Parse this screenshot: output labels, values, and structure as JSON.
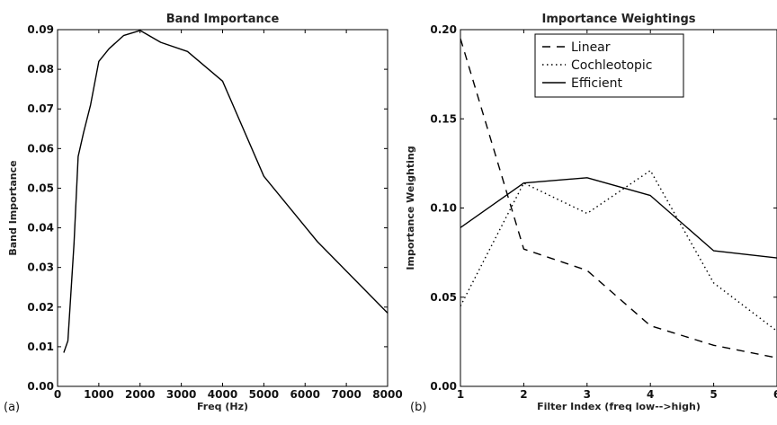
{
  "chart_data": [
    {
      "type": "line",
      "panel_label": "(a)",
      "title": "Band Importance",
      "xlabel": "Freq (Hz)",
      "ylabel": "Band Importance",
      "xlim": [
        0,
        8000
      ],
      "ylim": [
        0.0,
        0.09
      ],
      "xticks": [
        0,
        1000,
        2000,
        3000,
        4000,
        5000,
        6000,
        7000,
        8000
      ],
      "xtick_labels": [
        "0",
        "1000",
        "2000",
        "3000",
        "4000",
        "5000",
        "6000",
        "7000",
        "8000"
      ],
      "yticks": [
        0.0,
        0.01,
        0.02,
        0.03,
        0.04,
        0.05,
        0.06,
        0.07,
        0.08,
        0.09
      ],
      "ytick_labels": [
        "0.00",
        "0.01",
        "0.02",
        "0.03",
        "0.04",
        "0.05",
        "0.06",
        "0.07",
        "0.08",
        "0.09"
      ],
      "grid": false,
      "series": [
        {
          "style": "solid",
          "color": "#000000",
          "x": [
            150,
            250,
            400,
            500,
            630,
            800,
            1000,
            1250,
            1600,
            2000,
            2500,
            3150,
            4000,
            5000,
            6300,
            8000
          ],
          "y": [
            0.0085,
            0.0115,
            0.036,
            0.058,
            0.064,
            0.071,
            0.082,
            0.0852,
            0.0885,
            0.0898,
            0.0868,
            0.0845,
            0.077,
            0.053,
            0.0365,
            0.0185
          ]
        }
      ]
    },
    {
      "type": "line",
      "panel_label": "(b)",
      "title": "Importance Weightings",
      "xlabel": "Filter Index (freq low-->high)",
      "ylabel": "Importance Weighting",
      "xlim": [
        1,
        6
      ],
      "ylim": [
        0.0,
        0.2
      ],
      "xticks": [
        1,
        2,
        3,
        4,
        5,
        6
      ],
      "xtick_labels": [
        "1",
        "2",
        "3",
        "4",
        "5",
        "6"
      ],
      "yticks": [
        0.0,
        0.05,
        0.1,
        0.15,
        0.2
      ],
      "ytick_labels": [
        "0.00",
        "0.05",
        "0.10",
        "0.15",
        "0.20"
      ],
      "grid": false,
      "legend_position": "top-center",
      "series": [
        {
          "name": "Linear",
          "style": "dashed",
          "color": "#000000",
          "x": [
            1,
            2,
            3,
            4,
            5,
            6
          ],
          "y": [
            0.195,
            0.077,
            0.065,
            0.034,
            0.023,
            0.016
          ]
        },
        {
          "name": "Cochleotopic",
          "style": "dotted",
          "color": "#000000",
          "x": [
            1,
            2,
            3,
            4,
            5,
            6
          ],
          "y": [
            0.045,
            0.114,
            0.097,
            0.121,
            0.058,
            0.031
          ]
        },
        {
          "name": "Efficient",
          "style": "solid",
          "color": "#000000",
          "x": [
            1,
            2,
            3,
            4,
            5,
            6
          ],
          "y": [
            0.089,
            0.114,
            0.117,
            0.107,
            0.076,
            0.072
          ]
        }
      ]
    }
  ]
}
